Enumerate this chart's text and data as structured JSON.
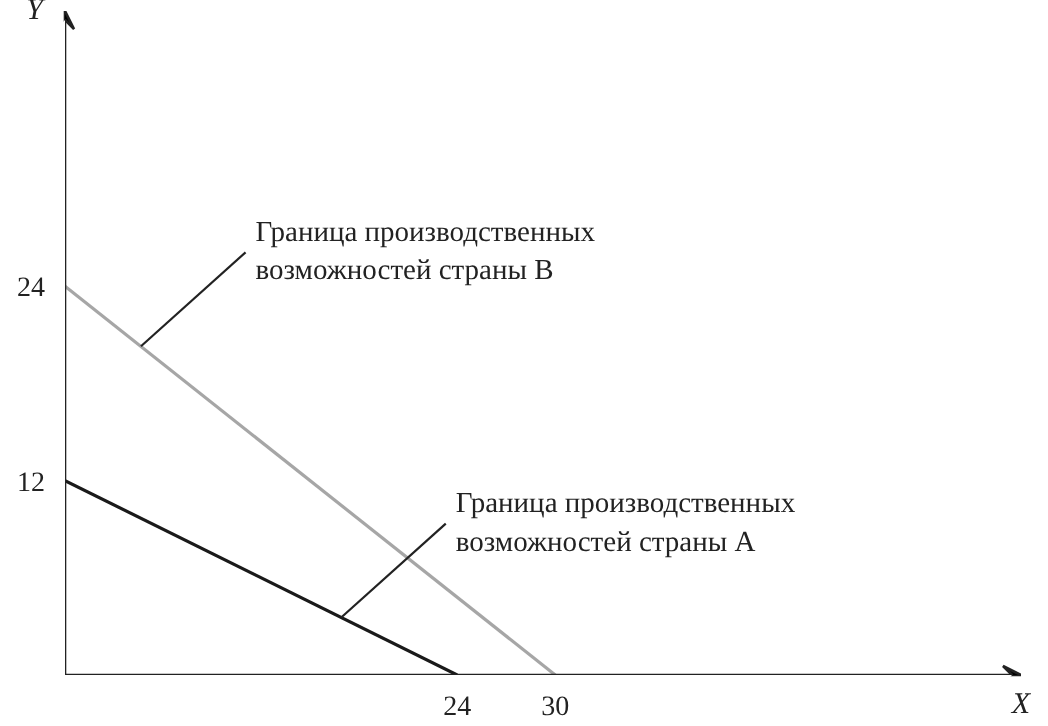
{
  "chart_data": {
    "type": "line",
    "xlabel": "X",
    "ylabel": "Y",
    "xlim": [
      0,
      58.5
    ],
    "ylim": [
      0,
      41
    ],
    "xticks": [
      24,
      30
    ],
    "yticks": [
      12,
      24
    ],
    "grid": false,
    "marker": "none",
    "line_style": "solid",
    "series": [
      {
        "color": "#1a1a1a",
        "x": [
          0,
          24
        ],
        "values": [
          12,
          0
        ]
      },
      {
        "color": "#a6a6a6",
        "x": [
          0,
          30
        ],
        "values": [
          24,
          0
        ]
      }
    ],
    "annotations": [
      {
        "text": "Граница производственных\nвозможностей страны B",
        "x": 4.65,
        "y": 20.3
      },
      {
        "text": "Граница производственных\nвозможностей страны A",
        "x": 16.9,
        "y": 3.55
      }
    ]
  }
}
